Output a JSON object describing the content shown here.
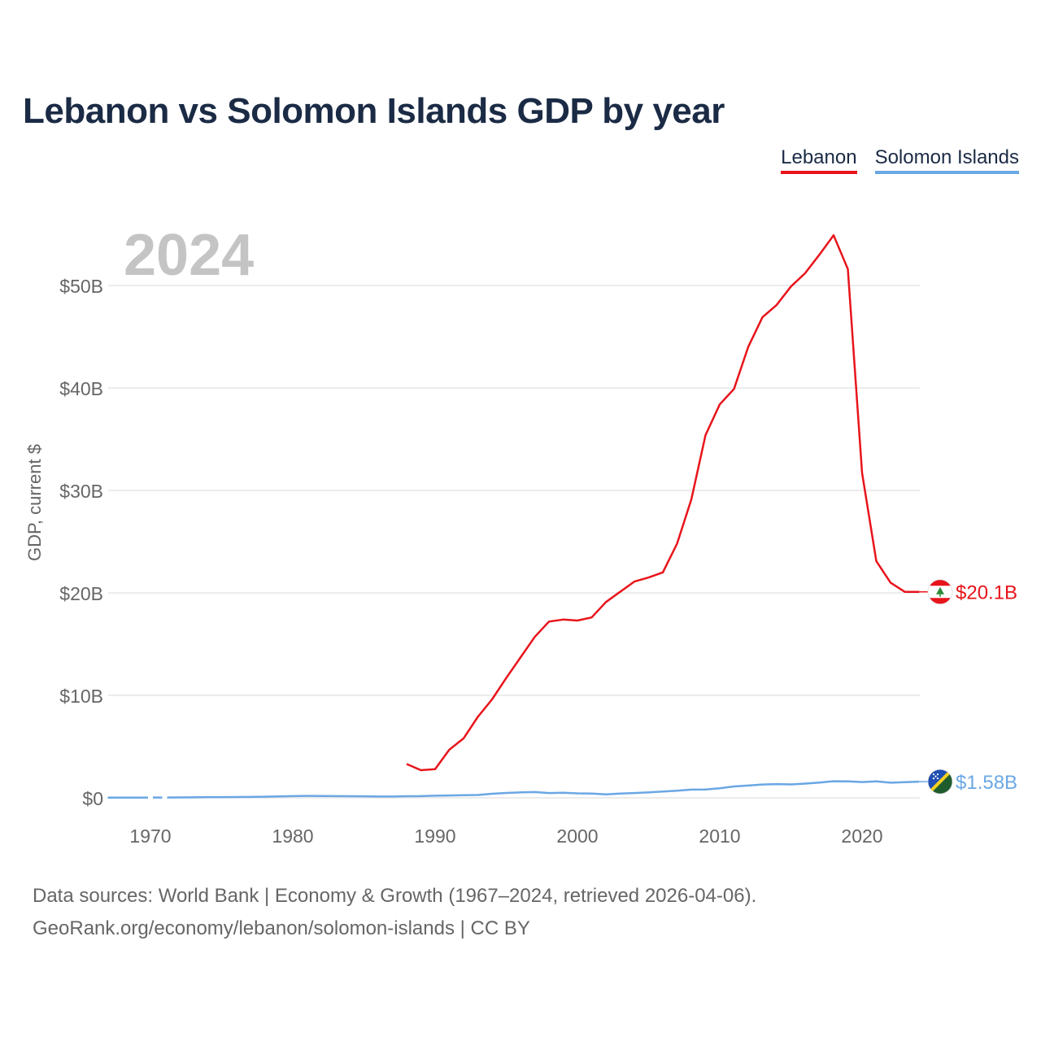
{
  "page_title": "Lebanon vs Solomon Islands GDP by year",
  "legend": [
    {
      "label": "Lebanon",
      "color": "#e8141b"
    },
    {
      "label": "Solomon Islands",
      "color": "#6aa7e4"
    }
  ],
  "footer": {
    "line1": "Data sources: World Bank | Economy & Growth (1967–2024, retrieved 2026-04-06).",
    "line2": "GeoRank.org/economy/lebanon/solomon-islands | CC BY"
  },
  "chart_data": {
    "type": "line",
    "title": "Lebanon vs Solomon Islands GDP by year",
    "year_label": "2024",
    "ylabel": "GDP, current $",
    "xlabel": "",
    "xlim": [
      1967,
      2024
    ],
    "ylim": [
      0,
      55
    ],
    "y_ticks": [
      0,
      10,
      20,
      30,
      40,
      50
    ],
    "y_tick_labels": [
      "$0",
      "$10B",
      "$20B",
      "$30B",
      "$40B",
      "$50B"
    ],
    "x_ticks": [
      1970,
      1980,
      1990,
      2000,
      2010,
      2020
    ],
    "x_tick_labels": [
      "1970",
      "1980",
      "1990",
      "2000",
      "2010",
      "2020"
    ],
    "grid": true,
    "legend_position": "top-right",
    "value_unit": "billion US$",
    "series": [
      {
        "name": "Lebanon",
        "color": "#e8141b",
        "end_label": "$20.1B",
        "end_value": 20.1,
        "points": [
          [
            1988,
            3.3
          ],
          [
            1989,
            2.7
          ],
          [
            1990,
            2.8
          ],
          [
            1991,
            4.7
          ],
          [
            1992,
            5.8
          ],
          [
            1993,
            7.9
          ],
          [
            1994,
            9.6
          ],
          [
            1995,
            11.7
          ],
          [
            1996,
            13.7
          ],
          [
            1997,
            15.7
          ],
          [
            1998,
            17.2
          ],
          [
            1999,
            17.4
          ],
          [
            2000,
            17.3
          ],
          [
            2001,
            17.6
          ],
          [
            2002,
            19.1
          ],
          [
            2003,
            20.1
          ],
          [
            2004,
            21.1
          ],
          [
            2005,
            21.5
          ],
          [
            2006,
            22.0
          ],
          [
            2007,
            24.8
          ],
          [
            2008,
            29.1
          ],
          [
            2009,
            35.4
          ],
          [
            2010,
            38.4
          ],
          [
            2011,
            39.9
          ],
          [
            2012,
            44.0
          ],
          [
            2013,
            46.9
          ],
          [
            2014,
            48.1
          ],
          [
            2015,
            49.9
          ],
          [
            2016,
            51.2
          ],
          [
            2017,
            53.0
          ],
          [
            2018,
            54.9
          ],
          [
            2019,
            51.6
          ],
          [
            2020,
            31.7
          ],
          [
            2021,
            23.1
          ],
          [
            2022,
            21.0
          ],
          [
            2023,
            20.1
          ],
          [
            2024,
            20.1
          ]
        ]
      },
      {
        "name": "Solomon Islands",
        "color": "#6aa7e4",
        "end_label": "$1.58B",
        "end_value": 1.58,
        "gap_years": [
          1970,
          1971
        ],
        "points": [
          [
            1967,
            0.02
          ],
          [
            1968,
            0.02
          ],
          [
            1969,
            0.02
          ],
          [
            1970,
            0.03
          ],
          [
            1971,
            0.03
          ],
          [
            1972,
            0.04
          ],
          [
            1973,
            0.05
          ],
          [
            1974,
            0.07
          ],
          [
            1975,
            0.07
          ],
          [
            1976,
            0.08
          ],
          [
            1977,
            0.09
          ],
          [
            1978,
            0.11
          ],
          [
            1979,
            0.14
          ],
          [
            1980,
            0.17
          ],
          [
            1981,
            0.19
          ],
          [
            1982,
            0.18
          ],
          [
            1983,
            0.17
          ],
          [
            1984,
            0.16
          ],
          [
            1985,
            0.15
          ],
          [
            1986,
            0.13
          ],
          [
            1987,
            0.13
          ],
          [
            1988,
            0.16
          ],
          [
            1989,
            0.17
          ],
          [
            1990,
            0.21
          ],
          [
            1991,
            0.23
          ],
          [
            1992,
            0.26
          ],
          [
            1993,
            0.28
          ],
          [
            1994,
            0.4
          ],
          [
            1995,
            0.48
          ],
          [
            1996,
            0.53
          ],
          [
            1997,
            0.56
          ],
          [
            1998,
            0.47
          ],
          [
            1999,
            0.49
          ],
          [
            2000,
            0.44
          ],
          [
            2001,
            0.41
          ],
          [
            2002,
            0.34
          ],
          [
            2003,
            0.41
          ],
          [
            2004,
            0.47
          ],
          [
            2005,
            0.54
          ],
          [
            2006,
            0.61
          ],
          [
            2007,
            0.7
          ],
          [
            2008,
            0.8
          ],
          [
            2009,
            0.81
          ],
          [
            2010,
            0.93
          ],
          [
            2011,
            1.11
          ],
          [
            2012,
            1.2
          ],
          [
            2013,
            1.3
          ],
          [
            2014,
            1.34
          ],
          [
            2015,
            1.31
          ],
          [
            2016,
            1.39
          ],
          [
            2017,
            1.49
          ],
          [
            2018,
            1.62
          ],
          [
            2019,
            1.61
          ],
          [
            2020,
            1.54
          ],
          [
            2021,
            1.6
          ],
          [
            2022,
            1.48
          ],
          [
            2023,
            1.53
          ],
          [
            2024,
            1.58
          ]
        ]
      }
    ]
  }
}
